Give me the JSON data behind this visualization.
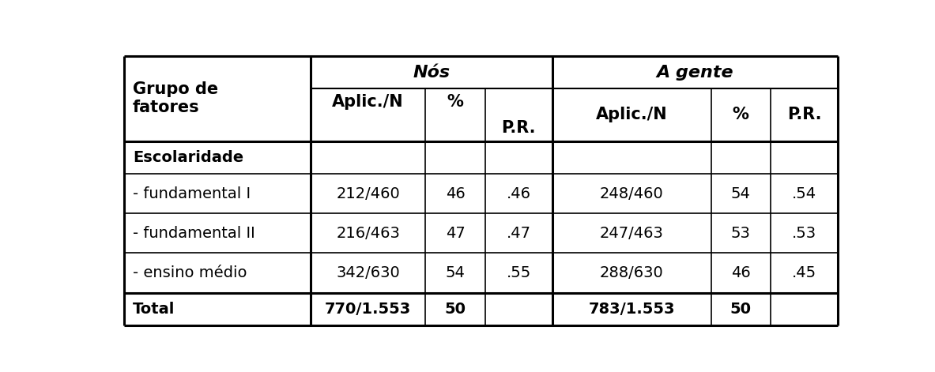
{
  "col1_header_line1": "Grupo de",
  "col1_header_line2": "fatores",
  "nos_header": "Nós",
  "agente_header": "A gente",
  "sub_headers_nos": [
    "Aplic./N",
    "%",
    "P.R."
  ],
  "sub_headers_agente": [
    "Aplic./N",
    "%",
    "P.R."
  ],
  "rows": [
    {
      "label": "Escolaridade",
      "bold": true,
      "italic": false,
      "data": [
        "",
        "",
        "",
        "",
        "",
        ""
      ]
    },
    {
      "label": "- fundamental I",
      "bold": false,
      "italic": false,
      "data": [
        "212/460",
        "46",
        ".46",
        "248/460",
        "54",
        ".54"
      ]
    },
    {
      "label": "- fundamental II",
      "bold": false,
      "italic": false,
      "data": [
        "216/463",
        "47",
        ".47",
        "247/463",
        "53",
        ".53"
      ]
    },
    {
      "label": "- ensino médio",
      "bold": false,
      "italic": false,
      "data": [
        "342/630",
        "54",
        ".55",
        "288/630",
        "46",
        ".45"
      ]
    },
    {
      "label": "Total",
      "bold": true,
      "italic": false,
      "data": [
        "770/1.553",
        "50",
        "",
        "783/1.553",
        "50",
        ""
      ]
    }
  ],
  "border_color": "#000000",
  "font_size": 14,
  "header_font_size": 15
}
